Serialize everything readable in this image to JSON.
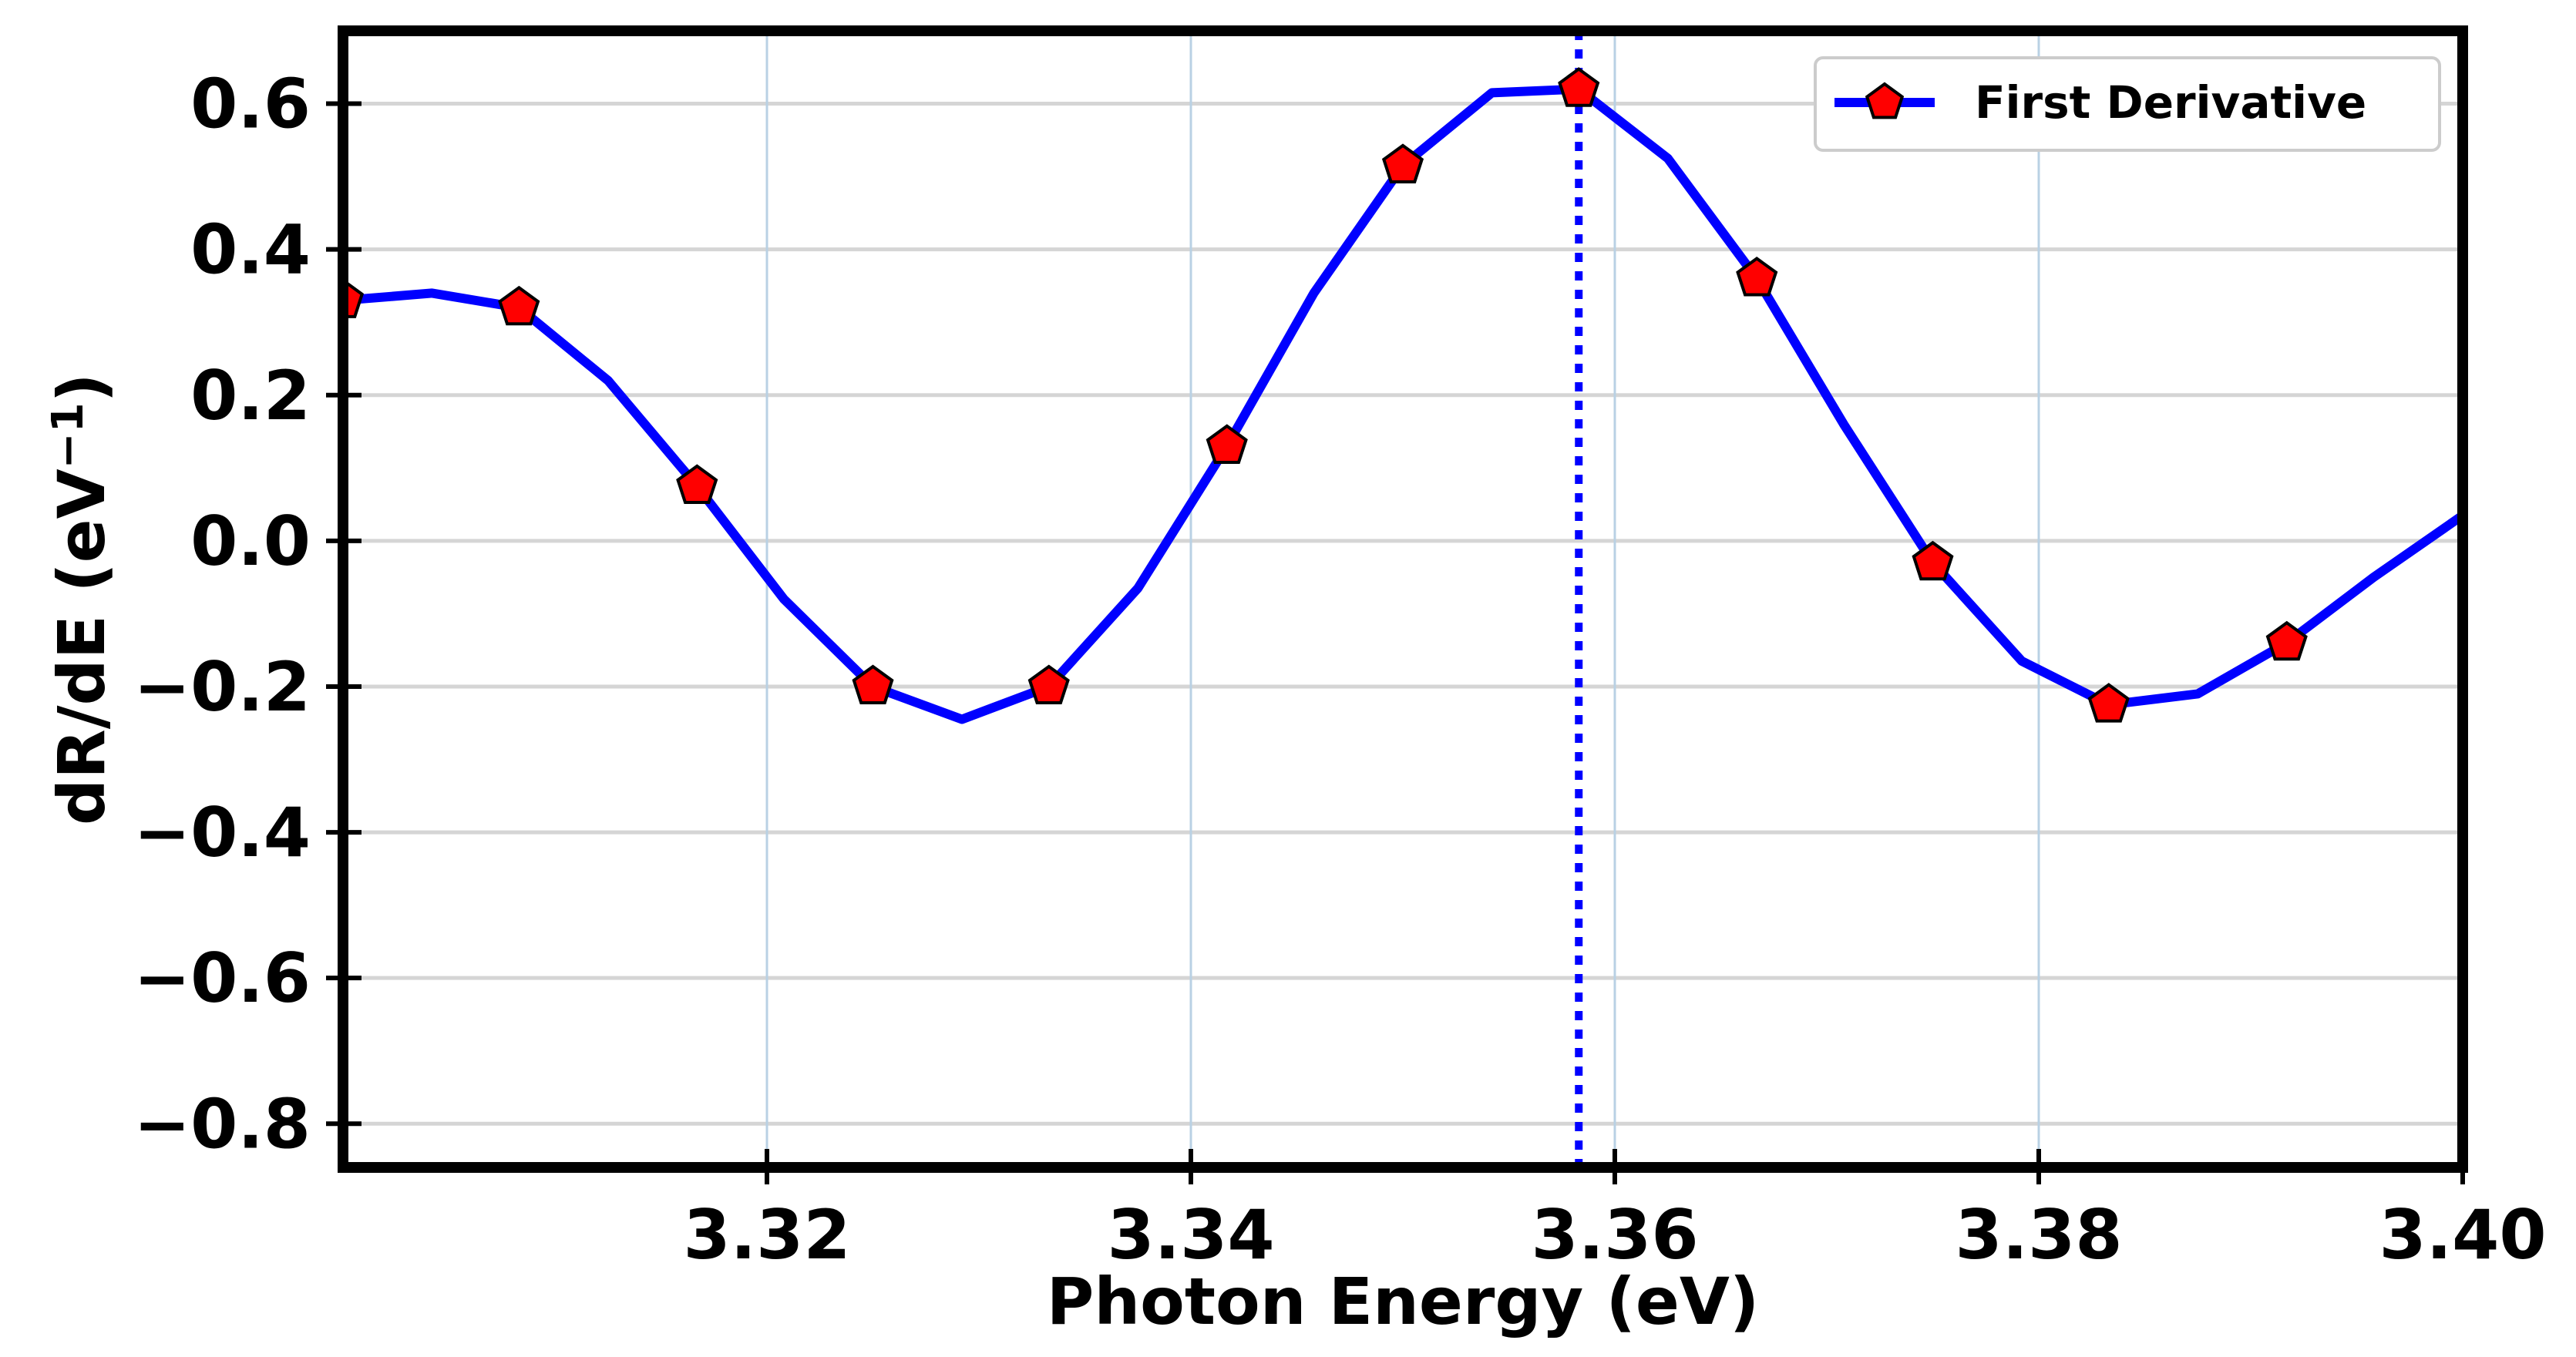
{
  "chart_data": {
    "type": "line",
    "title": "",
    "xlabel": "Photon Energy (eV)",
    "ylabel": "dR/dE (eV",
    "ylabel_superscript": "−1",
    "ylabel_close": ")",
    "xlim": [
      3.3,
      3.4
    ],
    "ylim": [
      -0.86,
      0.7
    ],
    "xticks": [
      3.32,
      3.34,
      3.36,
      3.38,
      3.4
    ],
    "xtick_labels": [
      "3.32",
      "3.34",
      "3.36",
      "3.38",
      "3.40"
    ],
    "yticks": [
      0.6,
      0.4,
      0.2,
      0.0,
      -0.2,
      -0.4,
      -0.6,
      -0.8
    ],
    "ytick_labels": [
      "0.6",
      "0.4",
      "0.2",
      "0.0",
      "−0.2",
      "−0.4",
      "−0.6",
      "−0.8"
    ],
    "grid": true,
    "legend_position": "top-right",
    "series": [
      {
        "name": "First Derivative",
        "color": "#0000ff",
        "marker": "pentagon",
        "marker_color": "#ff0000",
        "x": [
          3.3,
          3.3042,
          3.3083,
          3.3125,
          3.3167,
          3.3208,
          3.325,
          3.3292,
          3.3333,
          3.3375,
          3.3417,
          3.3458,
          3.35,
          3.3542,
          3.3583,
          3.3625,
          3.3667,
          3.3708,
          3.375,
          3.3792,
          3.3833,
          3.3875,
          3.3917,
          3.3958,
          3.4
        ],
        "y": [
          0.33,
          0.34,
          0.32,
          0.22,
          0.075,
          -0.08,
          -0.2,
          -0.245,
          -0.2,
          -0.065,
          0.13,
          0.34,
          0.515,
          0.615,
          0.62,
          0.525,
          0.36,
          0.16,
          -0.03,
          -0.165,
          -0.225,
          -0.21,
          -0.14,
          -0.05,
          0.035
        ],
        "marker_x": [
          3.3,
          3.3083,
          3.3167,
          3.325,
          3.3333,
          3.3417,
          3.35,
          3.3583,
          3.3667,
          3.375,
          3.3833,
          3.3917
        ],
        "marker_y": [
          0.33,
          0.32,
          0.075,
          -0.2,
          -0.2,
          0.13,
          0.515,
          0.62,
          0.36,
          -0.03,
          -0.225,
          -0.14
        ]
      }
    ],
    "vertical_line": {
      "x": 3.3583,
      "style": "dotted",
      "color": "#0000ff"
    }
  }
}
